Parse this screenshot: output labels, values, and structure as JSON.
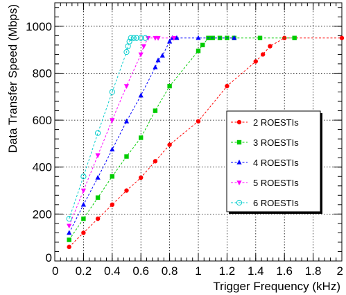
{
  "chart_data": {
    "type": "scatter",
    "xlabel": "Trigger Frequency (kHz)",
    "ylabel": "Data Transfer Speed (Mbps)",
    "xlim": [
      0,
      2
    ],
    "ylim": [
      0,
      1100
    ],
    "x_ticks": [
      0,
      0.2,
      0.4,
      0.6,
      0.8,
      1,
      1.2,
      1.4,
      1.6,
      1.8,
      2
    ],
    "x_tick_labels": [
      "0",
      "0.2",
      "0.4",
      "0.6",
      "0.8",
      "1",
      "1.2",
      "1.4",
      "1.6",
      "1.8",
      "2"
    ],
    "y_ticks": [
      0,
      200,
      400,
      600,
      800,
      1000
    ],
    "y_tick_labels": [
      "0",
      "200",
      "400",
      "600",
      "800",
      "1000"
    ],
    "grid": true,
    "legend_position": "right",
    "series": [
      {
        "name": "2 ROESTIs",
        "color": "#ff0000",
        "marker": "circle",
        "x": [
          0.1,
          0.2,
          0.3,
          0.4,
          0.5,
          0.6,
          0.7,
          0.8,
          1.0,
          1.2,
          1.4,
          1.45,
          1.5,
          1.6,
          2.0
        ],
        "y": [
          60,
          120,
          180,
          240,
          300,
          355,
          425,
          495,
          595,
          745,
          850,
          880,
          915,
          950,
          950
        ]
      },
      {
        "name": "3 ROESTIs",
        "color": "#00cc00",
        "marker": "square",
        "x": [
          0.1,
          0.2,
          0.3,
          0.4,
          0.5,
          0.6,
          0.7,
          0.8,
          1.0,
          1.03,
          1.07,
          1.1,
          1.15,
          1.2,
          1.25,
          1.43,
          1.67
        ],
        "y": [
          90,
          180,
          270,
          360,
          445,
          525,
          640,
          745,
          895,
          920,
          950,
          950,
          950,
          950,
          950,
          950,
          950
        ]
      },
      {
        "name": "4 ROESTIs",
        "color": "#0000ff",
        "marker": "triangle-up",
        "x": [
          0.1,
          0.2,
          0.3,
          0.4,
          0.5,
          0.6,
          0.7,
          0.72,
          0.75,
          0.8,
          0.82,
          0.85,
          1.0,
          1.25
        ],
        "y": [
          120,
          240,
          355,
          475,
          595,
          705,
          825,
          855,
          875,
          935,
          950,
          950,
          950,
          950
        ]
      },
      {
        "name": "5 ROESTIs",
        "color": "#ff00ff",
        "marker": "triangle-down",
        "x": [
          0.1,
          0.2,
          0.3,
          0.4,
          0.5,
          0.6,
          0.62,
          0.65,
          0.7,
          0.72,
          0.83
        ],
        "y": [
          150,
          300,
          450,
          600,
          745,
          880,
          915,
          950,
          950,
          950,
          950
        ]
      },
      {
        "name": "6 ROESTIs",
        "color": "#00cccc",
        "marker": "open-circle",
        "x": [
          0.1,
          0.2,
          0.3,
          0.4,
          0.5,
          0.51,
          0.52,
          0.53,
          0.55,
          0.57,
          0.6,
          0.63
        ],
        "y": [
          180,
          360,
          545,
          720,
          890,
          915,
          935,
          950,
          950,
          950,
          950,
          950
        ]
      }
    ]
  }
}
